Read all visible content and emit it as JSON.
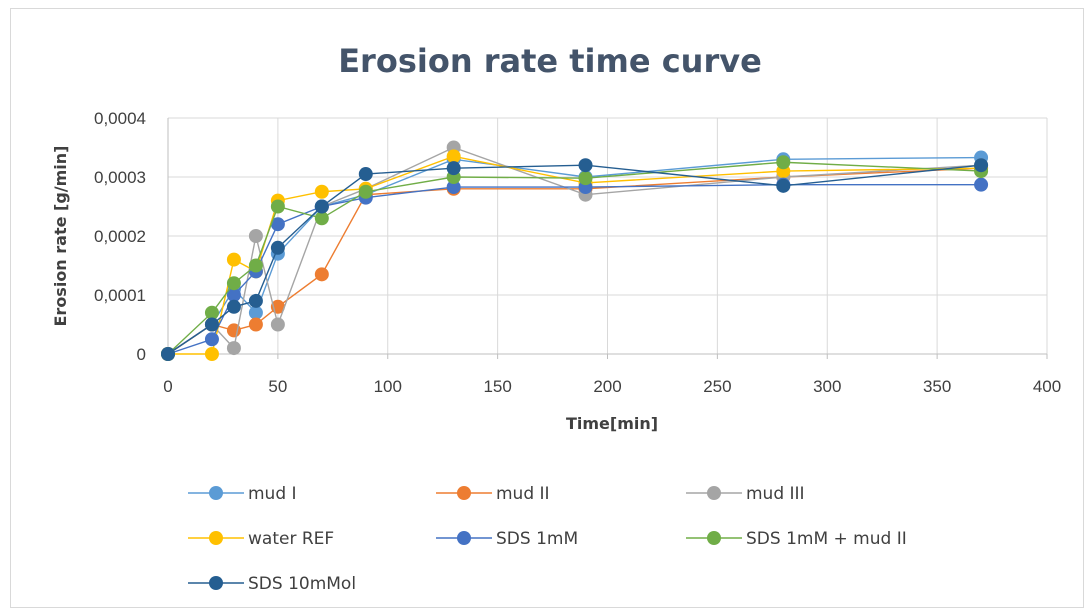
{
  "chart_data": {
    "type": "line",
    "title": "Erosion rate time curve",
    "xlabel": "Time[min]",
    "ylabel": "Erosion rate [g/min]",
    "xlim": [
      0,
      400
    ],
    "ylim": [
      0,
      0.0004
    ],
    "x_ticks": [
      0,
      50,
      100,
      150,
      200,
      250,
      300,
      350,
      400
    ],
    "y_ticks": [
      0,
      0.0001,
      0.0002,
      0.0003,
      0.0004
    ],
    "x_tick_labels": [
      "0",
      "50",
      "100",
      "150",
      "200",
      "250",
      "300",
      "350",
      "400"
    ],
    "y_tick_labels": [
      "0",
      "0,0001",
      "0,0002",
      "0,0003",
      "0,0004"
    ],
    "grid": "horizontal",
    "legend_position": "bottom",
    "series": [
      {
        "name": "mud I",
        "color": "#5b9bd5",
        "points": [
          [
            0,
            0
          ],
          [
            20,
            5e-05
          ],
          [
            30,
            0.00011
          ],
          [
            40,
            7e-05
          ],
          [
            50,
            0.00017
          ],
          [
            70,
            0.00025
          ],
          [
            90,
            0.00027
          ],
          [
            130,
            0.00033
          ],
          [
            190,
            0.0003
          ],
          [
            280,
            0.00033
          ],
          [
            370,
            0.000333
          ]
        ]
      },
      {
        "name": "mud II",
        "color": "#ed7d31",
        "points": [
          [
            0,
            0
          ],
          [
            20,
            5e-05
          ],
          [
            30,
            4e-05
          ],
          [
            40,
            5e-05
          ],
          [
            50,
            8e-05
          ],
          [
            70,
            0.000135
          ],
          [
            90,
            0.00027
          ],
          [
            130,
            0.00028
          ],
          [
            190,
            0.00028
          ],
          [
            280,
            0.0003
          ],
          [
            370,
            0.000315
          ]
        ]
      },
      {
        "name": "mud III",
        "color": "#a5a5a5",
        "points": [
          [
            0,
            0
          ],
          [
            20,
            5e-05
          ],
          [
            30,
            1e-05
          ],
          [
            40,
            0.0002
          ],
          [
            50,
            5e-05
          ],
          [
            70,
            0.00025
          ],
          [
            90,
            0.00028
          ],
          [
            130,
            0.00035
          ],
          [
            190,
            0.00027
          ],
          [
            280,
            0.0003
          ],
          [
            370,
            0.00032
          ]
        ]
      },
      {
        "name": "water REF",
        "color": "#ffc000",
        "points": [
          [
            0,
            0
          ],
          [
            20,
            0
          ],
          [
            30,
            0.00016
          ],
          [
            40,
            0.00014
          ],
          [
            50,
            0.00026
          ],
          [
            70,
            0.000275
          ],
          [
            90,
            0.00028
          ],
          [
            130,
            0.000335
          ],
          [
            190,
            0.00029
          ],
          [
            280,
            0.00031
          ],
          [
            370,
            0.000315
          ]
        ]
      },
      {
        "name": "SDS 1mM",
        "color": "#4472c4",
        "points": [
          [
            0,
            0
          ],
          [
            20,
            2.5e-05
          ],
          [
            30,
            0.0001
          ],
          [
            40,
            0.00014
          ],
          [
            50,
            0.00022
          ],
          [
            70,
            0.00025
          ],
          [
            90,
            0.000265
          ],
          [
            130,
            0.000283
          ],
          [
            190,
            0.000283
          ],
          [
            280,
            0.000287
          ],
          [
            370,
            0.000287
          ]
        ]
      },
      {
        "name": "SDS 1mM + mud II",
        "color": "#70ad47",
        "points": [
          [
            0,
            0
          ],
          [
            20,
            7e-05
          ],
          [
            30,
            0.00012
          ],
          [
            40,
            0.00015
          ],
          [
            50,
            0.00025
          ],
          [
            70,
            0.00023
          ],
          [
            90,
            0.000275
          ],
          [
            130,
            0.0003
          ],
          [
            190,
            0.000298
          ],
          [
            280,
            0.000325
          ],
          [
            370,
            0.00031
          ]
        ]
      },
      {
        "name": "SDS 10mMol",
        "color": "#255e91",
        "points": [
          [
            0,
            0
          ],
          [
            20,
            5e-05
          ],
          [
            30,
            8e-05
          ],
          [
            40,
            9e-05
          ],
          [
            50,
            0.00018
          ],
          [
            70,
            0.00025
          ],
          [
            90,
            0.000305
          ],
          [
            130,
            0.000315
          ],
          [
            190,
            0.00032
          ],
          [
            280,
            0.000285
          ],
          [
            370,
            0.00032
          ]
        ]
      }
    ]
  }
}
